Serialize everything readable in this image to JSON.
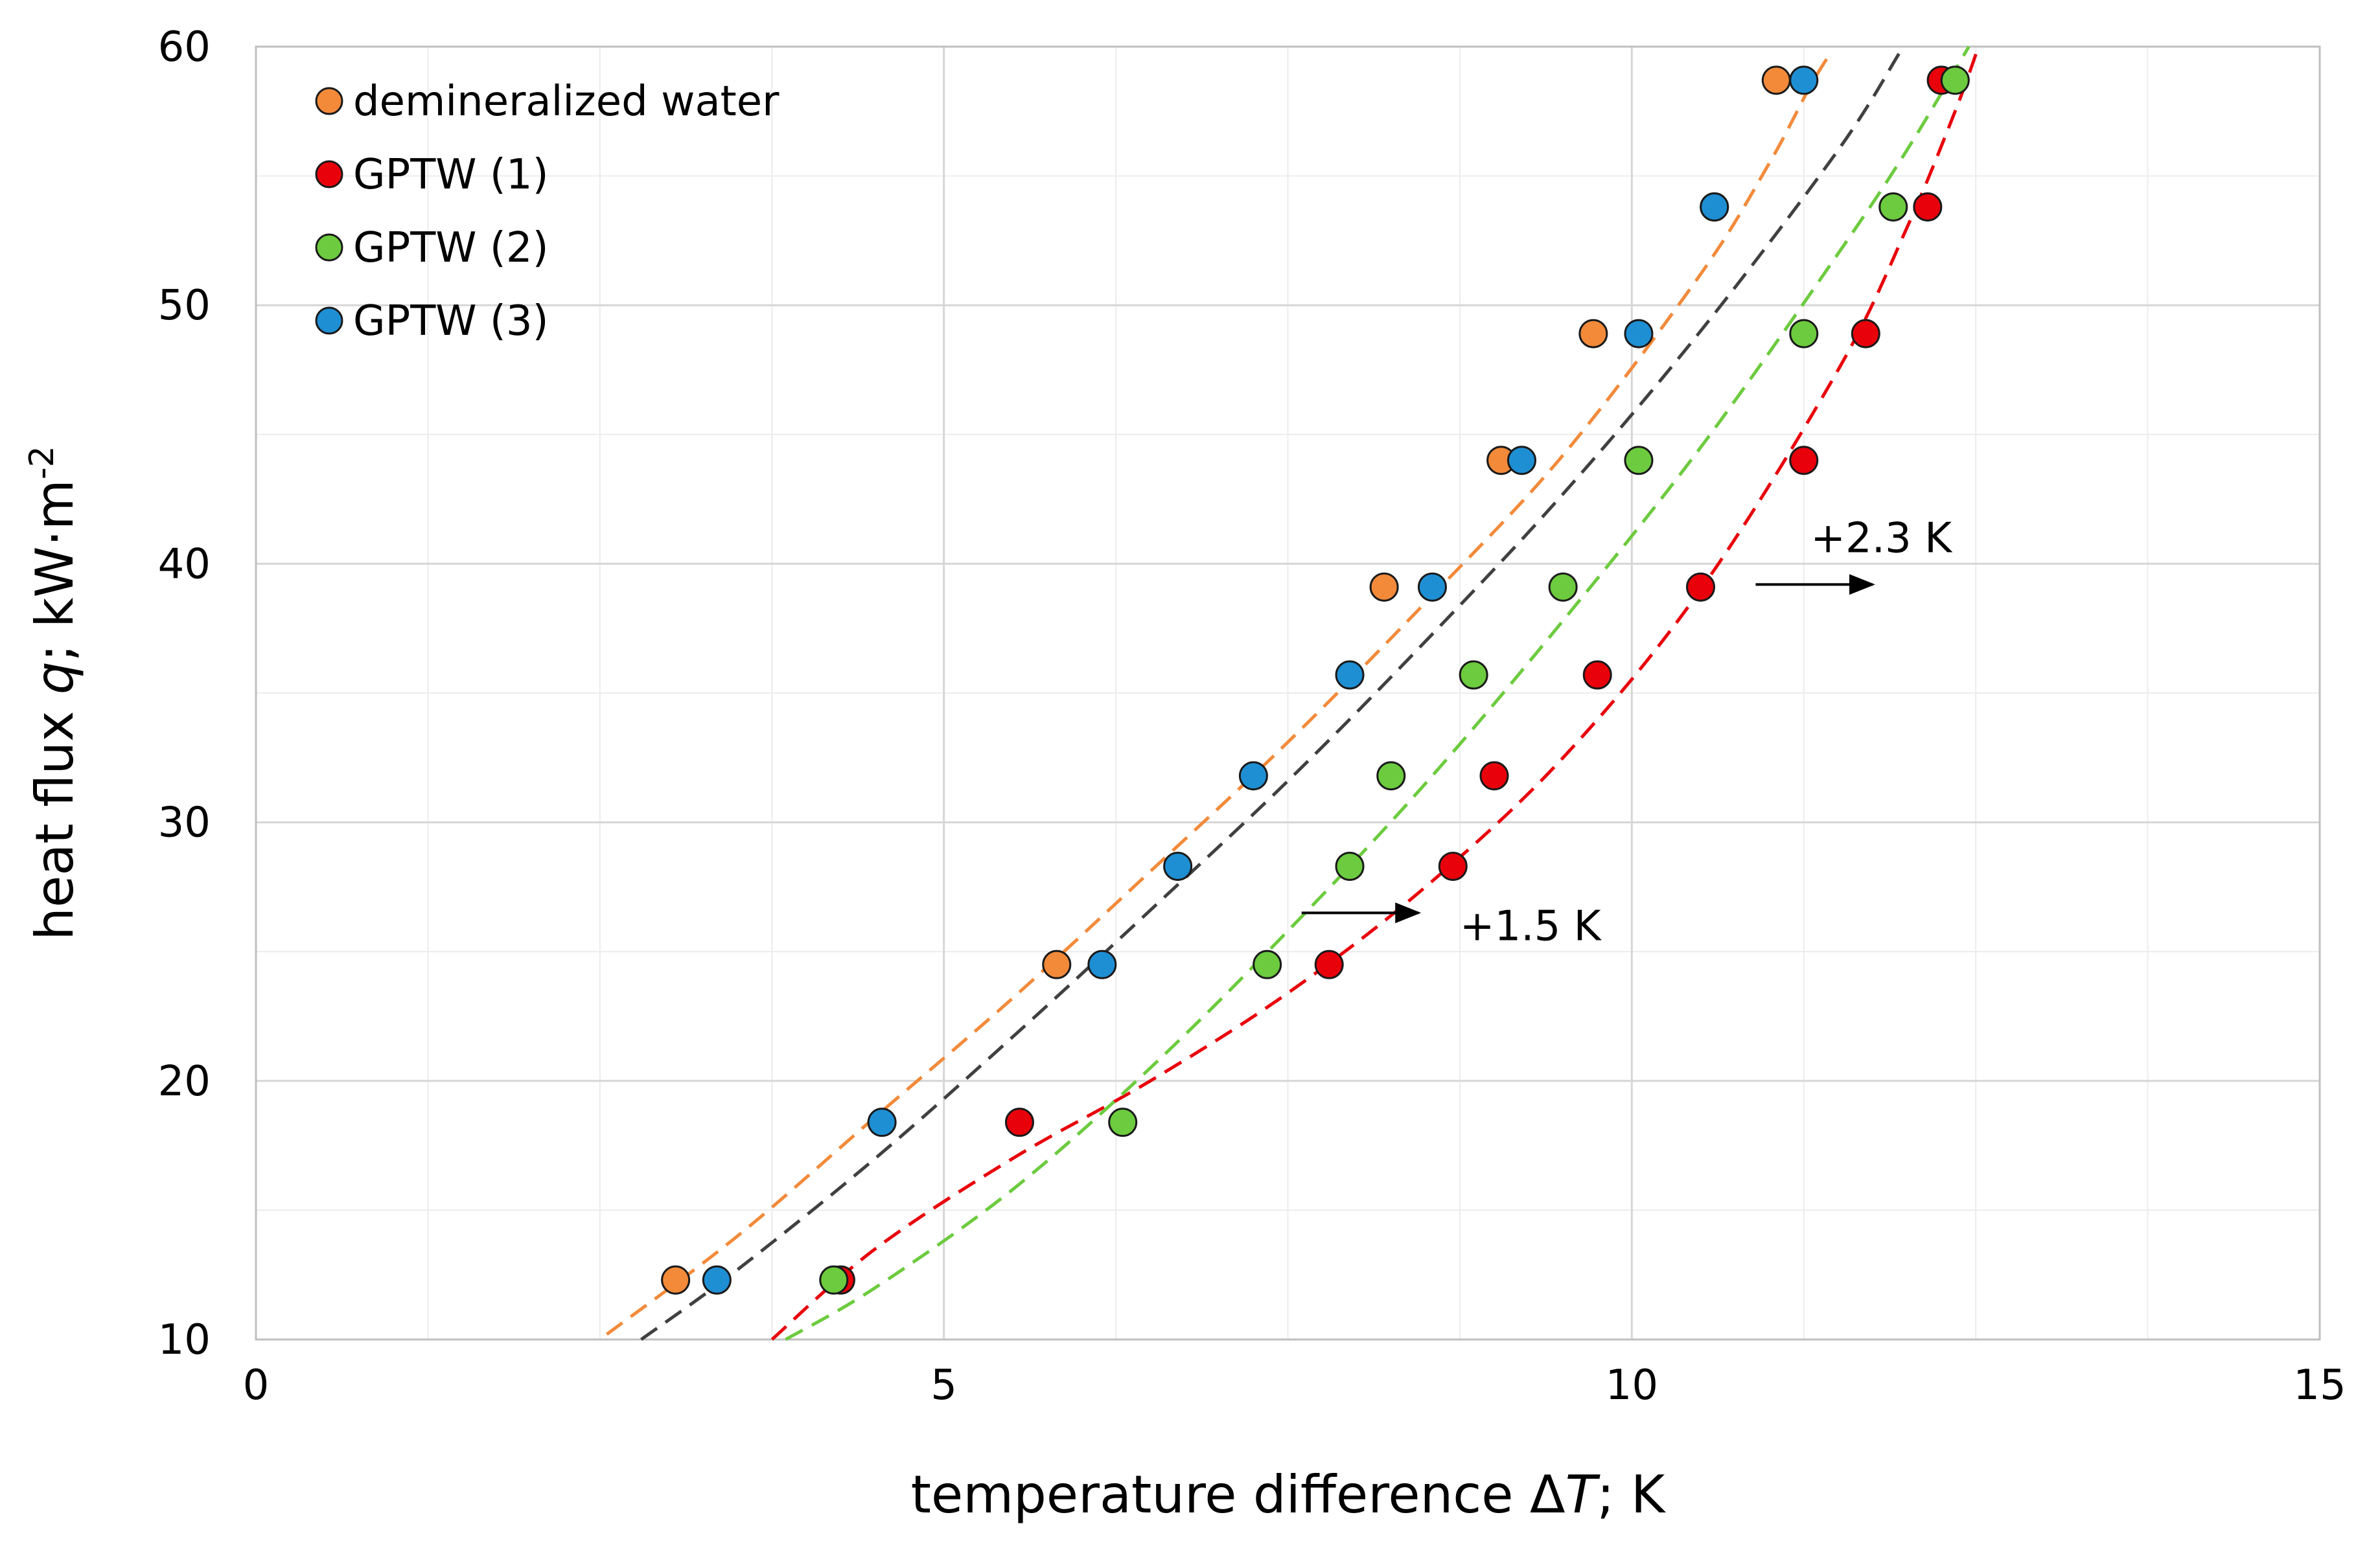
{
  "chart_data": {
    "type": "scatter",
    "title": "",
    "xlabel_prefix": "temperature difference Δ",
    "xlabel_var": "T",
    "xlabel_suffix": "; K",
    "ylabel_prefix": "heat flux ",
    "ylabel_var": "q",
    "ylabel_suffix": "; kW·m",
    "ylabel_sup": "-2",
    "xlim": [
      0,
      15
    ],
    "ylim": [
      10,
      60
    ],
    "xticks": [
      0,
      5,
      10,
      15
    ],
    "yticks": [
      10,
      20,
      30,
      40,
      50,
      60
    ],
    "x_minor_step": 1.25,
    "y_minor_step": 5,
    "grid": true,
    "legend_position": "top-left",
    "series": [
      {
        "name": "demineralized water",
        "color": "#F28A3A",
        "x": [
          3.05,
          5.82,
          8.2,
          9.05,
          9.72,
          10.6,
          11.05
        ],
        "y": [
          12.3,
          24.5,
          39.1,
          44.0,
          48.9,
          53.8,
          58.7
        ],
        "fit_color": "#F28A3A",
        "fit": [
          [
            2.55,
            10.2
          ],
          [
            3.5,
            14.0
          ],
          [
            4.5,
            18.6
          ],
          [
            5.5,
            23.2
          ],
          [
            6.5,
            28.1
          ],
          [
            7.5,
            33.1
          ],
          [
            8.5,
            38.5
          ],
          [
            9.5,
            44.2
          ],
          [
            10.5,
            51.2
          ],
          [
            11.0,
            55.5
          ],
          [
            11.3,
            58.5
          ],
          [
            11.45,
            59.8
          ]
        ]
      },
      {
        "name": "GPTW (1)",
        "color": "#E8000B",
        "x": [
          4.25,
          5.55,
          7.8,
          8.7,
          9.0,
          9.75,
          10.5,
          11.25,
          11.7,
          12.15,
          12.25
        ],
        "y": [
          12.3,
          18.4,
          24.5,
          28.3,
          31.8,
          35.7,
          39.1,
          44.0,
          48.9,
          53.8,
          58.7
        ],
        "fit_color": "#E8000B",
        "fit": [
          [
            3.75,
            10.0
          ],
          [
            4.5,
            13.5
          ],
          [
            5.5,
            17.0
          ],
          [
            6.5,
            20.0
          ],
          [
            7.5,
            23.4
          ],
          [
            8.5,
            27.5
          ],
          [
            9.5,
            32.5
          ],
          [
            10.5,
            39.0
          ],
          [
            11.5,
            47.5
          ],
          [
            12.0,
            53.0
          ],
          [
            12.35,
            57.5
          ],
          [
            12.52,
            60.0
          ]
        ]
      },
      {
        "name": "GPTW (2)",
        "color": "#6CCB3E",
        "x": [
          4.2,
          6.3,
          7.35,
          7.95,
          8.25,
          8.85,
          9.5,
          10.05,
          11.25,
          11.9,
          12.35
        ],
        "y": [
          12.3,
          18.4,
          24.5,
          28.3,
          31.8,
          35.7,
          39.1,
          44.0,
          48.9,
          53.8,
          58.7
        ],
        "fit_color": "#6CCB3E",
        "fit": [
          [
            3.85,
            10.0
          ],
          [
            4.5,
            12.0
          ],
          [
            5.5,
            15.8
          ],
          [
            6.5,
            20.5
          ],
          [
            7.5,
            25.8
          ],
          [
            8.5,
            31.5
          ],
          [
            9.5,
            37.8
          ],
          [
            10.5,
            44.5
          ],
          [
            11.5,
            52.0
          ],
          [
            12.0,
            56.0
          ],
          [
            12.45,
            60.0
          ]
        ]
      },
      {
        "name": "GPTW (3)",
        "color": "#1F8FD4",
        "x": [
          3.35,
          4.55,
          6.15,
          6.7,
          7.25,
          7.95,
          8.55,
          9.2,
          10.05,
          10.6,
          11.25
        ],
        "y": [
          12.3,
          18.4,
          24.5,
          28.3,
          31.8,
          35.7,
          39.1,
          44.0,
          48.9,
          53.8,
          58.7
        ],
        "fit_color": "#404040",
        "fit": [
          [
            2.8,
            10.0
          ],
          [
            3.5,
            12.7
          ],
          [
            4.5,
            17.0
          ],
          [
            5.5,
            21.7
          ],
          [
            6.5,
            26.6
          ],
          [
            7.5,
            31.6
          ],
          [
            8.5,
            37.0
          ],
          [
            9.5,
            42.7
          ],
          [
            10.5,
            49.0
          ],
          [
            11.5,
            56.0
          ],
          [
            11.95,
            59.8
          ]
        ]
      }
    ],
    "annotations": [
      {
        "text": "+2.3 K",
        "text_x": 11.3,
        "text_y": 41.0,
        "arrow_from": [
          10.9,
          39.2
        ],
        "arrow_to": [
          11.75,
          39.2
        ]
      },
      {
        "text": "+1.5 K",
        "text_x": 8.75,
        "text_y": 26.0,
        "arrow_from": [
          7.6,
          26.5
        ],
        "arrow_to": [
          8.45,
          26.5
        ]
      }
    ]
  }
}
